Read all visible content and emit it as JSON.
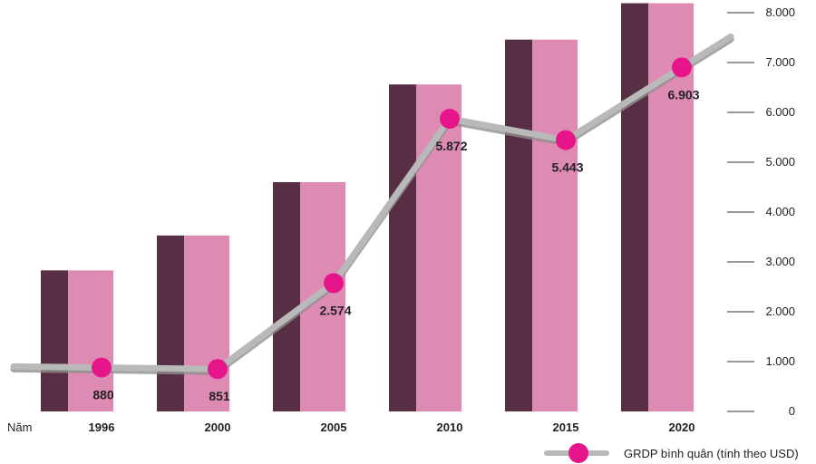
{
  "chart_data": {
    "type": "bar",
    "x_axis_title": "Năm",
    "categories": [
      "1996",
      "2000",
      "2005",
      "2010",
      "2015",
      "2020"
    ],
    "bars": [
      2830,
      3530,
      4600,
      6560,
      7460,
      8190
    ],
    "series": [
      {
        "name": "GRDP bình quân (tính theo USD)",
        "type": "line",
        "values": [
          880,
          851,
          2574,
          5872,
          5443,
          6903
        ],
        "labels": [
          "880",
          "851",
          "2.574",
          "5.872",
          "5.443",
          "6.903"
        ]
      }
    ],
    "ylim": [
      0,
      8000
    ],
    "yticks": [
      0,
      1000,
      2000,
      3000,
      4000,
      5000,
      6000,
      7000,
      8000
    ],
    "ytick_labels": [
      "0",
      "1.000",
      "2.000",
      "3.000",
      "4.000",
      "5.000",
      "6.000",
      "7.000",
      "8.000"
    ],
    "y_axis_side": "right",
    "grid": false,
    "legend_position": "bottom-right",
    "colors": {
      "bar_dark": "#582E44",
      "bar_light": "#DE8BB3",
      "line": "#B9B9B9",
      "line_shadow": "#8E8E8E",
      "marker": "#E6168A",
      "tick": "#333333"
    }
  }
}
